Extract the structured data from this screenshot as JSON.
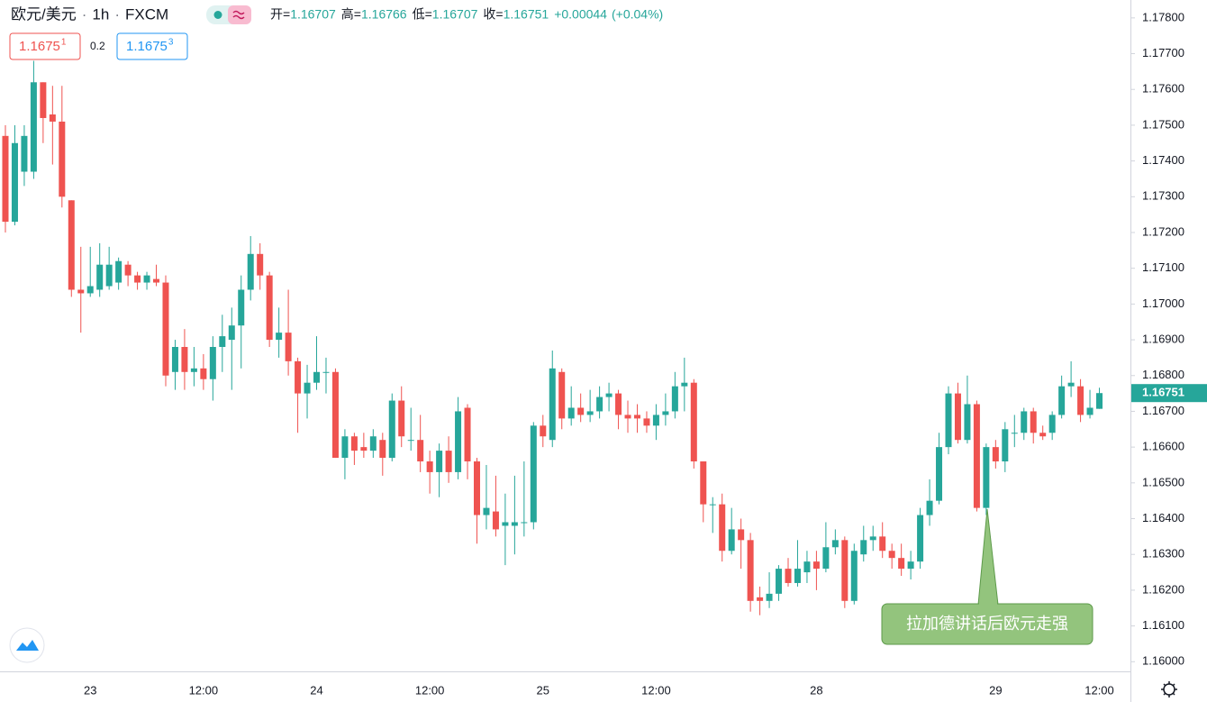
{
  "header": {
    "symbol": "欧元/美元",
    "sep": "·",
    "interval": "1h",
    "source": "FXCM",
    "ohlc": [
      {
        "label": "开=",
        "value": "1.16707"
      },
      {
        "label": "高=",
        "value": "1.16766"
      },
      {
        "label": "低=",
        "value": "1.16707"
      },
      {
        "label": "收=",
        "value": "1.16751"
      }
    ],
    "change": "+0.00044",
    "change_pct": "(+0.04%)",
    "bid": {
      "main": "1.1675",
      "sup": "1"
    },
    "spread": "0.2",
    "ask": {
      "main": "1.1675",
      "sup": "3"
    }
  },
  "chart_data": {
    "type": "candlestick",
    "up_color": "#26a69a",
    "down_color": "#ef5350",
    "categories": [
      null,
      null,
      null,
      null,
      null,
      null,
      null,
      null,
      null,
      "23",
      null,
      null,
      null,
      null,
      null,
      null,
      null,
      null,
      null,
      null,
      null,
      "12:00",
      null,
      null,
      null,
      null,
      null,
      null,
      null,
      null,
      null,
      null,
      null,
      "24",
      null,
      null,
      null,
      null,
      null,
      null,
      null,
      null,
      null,
      null,
      null,
      "12:00",
      null,
      null,
      null,
      null,
      null,
      null,
      null,
      null,
      null,
      null,
      null,
      "25",
      null,
      null,
      null,
      null,
      null,
      null,
      null,
      null,
      null,
      null,
      null,
      "12:00",
      null,
      null,
      null,
      null,
      null,
      null,
      null,
      null,
      null,
      null,
      null,
      null,
      null,
      null,
      null,
      null,
      "28",
      null,
      null,
      null,
      null,
      null,
      null,
      null,
      null,
      null,
      null,
      null,
      null,
      null,
      null,
      null,
      null,
      null,
      null,
      "29",
      null,
      null,
      null,
      null,
      null,
      null,
      null,
      null,
      null,
      null,
      "12:00"
    ],
    "open": [
      1.1747,
      1.1723,
      1.1737,
      1.1737,
      1.1762,
      1.1753,
      1.1751,
      1.1729,
      1.1704,
      1.1703,
      1.1704,
      1.1705,
      1.1706,
      1.1711,
      1.1708,
      1.1706,
      1.1707,
      1.1706,
      1.1681,
      1.1688,
      1.1681,
      1.1682,
      1.1679,
      1.1688,
      1.169,
      1.1694,
      1.1704,
      1.1714,
      1.1708,
      1.169,
      1.1692,
      1.1684,
      1.1675,
      1.1678,
      1.1681,
      1.1681,
      1.1657,
      1.1663,
      1.166,
      1.1659,
      1.1662,
      1.1657,
      1.1673,
      1.1662,
      1.1662,
      1.1656,
      1.1653,
      1.1659,
      1.1653,
      1.1671,
      1.1656,
      1.1641,
      1.1642,
      1.1638,
      1.1638,
      1.1639,
      1.1639,
      1.1666,
      1.1662,
      1.1681,
      1.1668,
      1.1671,
      1.1669,
      1.167,
      1.1674,
      1.1675,
      1.1669,
      1.1669,
      1.1668,
      1.1666,
      1.1669,
      1.167,
      1.1677,
      1.1678,
      1.1656,
      1.1644,
      1.1644,
      1.1631,
      1.1637,
      1.1634,
      1.1618,
      1.1617,
      1.1619,
      1.1626,
      1.1622,
      1.1625,
      1.1628,
      1.1626,
      1.1632,
      1.1634,
      1.1617,
      1.163,
      1.1634,
      1.1635,
      1.1631,
      1.1629,
      1.1626,
      1.1628,
      1.1641,
      1.1645,
      1.166,
      1.1675,
      1.1662,
      1.1672,
      1.1643,
      1.166,
      1.1656,
      1.1664,
      1.1664,
      1.167,
      1.1664,
      1.1664,
      1.1669,
      1.1677,
      1.1677,
      1.1669,
      1.16707
    ],
    "high": [
      1.175,
      1.175,
      1.175,
      1.1768,
      1.1762,
      1.1761,
      1.1761,
      1.1729,
      1.1716,
      1.1716,
      1.1717,
      1.1716,
      1.1713,
      1.1712,
      1.1709,
      1.1709,
      1.1711,
      1.1708,
      1.169,
      1.1693,
      1.1688,
      1.1686,
      1.1691,
      1.1697,
      1.1699,
      1.1708,
      1.1719,
      1.1717,
      1.1709,
      1.1699,
      1.1704,
      1.1685,
      1.1683,
      1.1691,
      1.1685,
      1.1682,
      1.1665,
      1.1664,
      1.1664,
      1.1665,
      1.1664,
      1.1675,
      1.1677,
      1.1671,
      1.1669,
      1.1659,
      1.1661,
      1.1663,
      1.1674,
      1.1672,
      1.1657,
      1.1655,
      1.1652,
      1.1647,
      1.1652,
      1.1656,
      1.1667,
      1.1669,
      1.1687,
      1.1682,
      1.1677,
      1.1675,
      1.1676,
      1.1677,
      1.1678,
      1.1676,
      1.1673,
      1.1672,
      1.167,
      1.1672,
      1.1675,
      1.1681,
      1.1685,
      1.1679,
      1.1656,
      1.1646,
      1.1647,
      1.1643,
      1.164,
      1.1636,
      1.1621,
      1.1625,
      1.1627,
      1.1629,
      1.1634,
      1.1631,
      1.1631,
      1.1639,
      1.1637,
      1.1635,
      1.1633,
      1.1638,
      1.1638,
      1.1639,
      1.1633,
      1.1633,
      1.1631,
      1.1643,
      1.1651,
      1.1664,
      1.1677,
      1.1678,
      1.168,
      1.1673,
      1.1661,
      1.1662,
      1.1667,
      1.1669,
      1.1671,
      1.1671,
      1.1666,
      1.167,
      1.168,
      1.1684,
      1.1679,
      1.1676,
      1.16766
    ],
    "low": [
      1.172,
      1.1722,
      1.1733,
      1.1735,
      1.1745,
      1.1739,
      1.1727,
      1.1702,
      1.1692,
      1.1702,
      1.1702,
      1.1704,
      1.1704,
      1.1705,
      1.1704,
      1.1704,
      1.1705,
      1.1677,
      1.1676,
      1.1676,
      1.1677,
      1.1676,
      1.1673,
      1.1681,
      1.1676,
      1.1682,
      1.1701,
      1.1704,
      1.1688,
      1.1685,
      1.168,
      1.1664,
      1.1668,
      1.1676,
      1.1675,
      1.1657,
      1.1651,
      1.1655,
      1.1657,
      1.1657,
      1.1652,
      1.1656,
      1.166,
      1.1659,
      1.1653,
      1.1647,
      1.1646,
      1.165,
      1.1651,
      1.1651,
      1.1633,
      1.1637,
      1.1635,
      1.1627,
      1.163,
      1.1635,
      1.1637,
      1.166,
      1.166,
      1.1665,
      1.1666,
      1.1667,
      1.1667,
      1.1668,
      1.167,
      1.1665,
      1.1664,
      1.1664,
      1.1664,
      1.1662,
      1.1666,
      1.1668,
      1.167,
      1.1654,
      1.1639,
      1.1636,
      1.1628,
      1.163,
      1.1626,
      1.1614,
      1.1613,
      1.1615,
      1.1617,
      1.1621,
      1.1621,
      1.1622,
      1.162,
      1.1625,
      1.163,
      1.1615,
      1.1616,
      1.1628,
      1.1631,
      1.1629,
      1.1626,
      1.1624,
      1.1623,
      1.1626,
      1.1638,
      1.1644,
      1.1658,
      1.1661,
      1.1661,
      1.1642,
      1.1641,
      1.1654,
      1.1653,
      1.166,
      1.1662,
      1.1661,
      1.1662,
      1.1662,
      1.1668,
      1.1674,
      1.1667,
      1.1668,
      1.16707
    ],
    "close": [
      1.1723,
      1.1745,
      1.1747,
      1.1762,
      1.1752,
      1.1751,
      1.173,
      1.1704,
      1.1703,
      1.1705,
      1.1711,
      1.1711,
      1.1712,
      1.1708,
      1.1706,
      1.1708,
      1.1706,
      1.168,
      1.1688,
      1.1681,
      1.1682,
      1.1679,
      1.1688,
      1.1691,
      1.1694,
      1.1704,
      1.1714,
      1.1708,
      1.169,
      1.1692,
      1.1684,
      1.1675,
      1.1678,
      1.1681,
      1.1681,
      1.1657,
      1.1663,
      1.1659,
      1.1659,
      1.1663,
      1.1657,
      1.1673,
      1.1663,
      1.1662,
      1.1656,
      1.1653,
      1.1659,
      1.1653,
      1.167,
      1.1656,
      1.1641,
      1.1643,
      1.1637,
      1.1639,
      1.1639,
      1.1639,
      1.1666,
      1.1663,
      1.1682,
      1.1668,
      1.1671,
      1.1669,
      1.167,
      1.1674,
      1.1675,
      1.1669,
      1.1668,
      1.1668,
      1.1666,
      1.1669,
      1.167,
      1.1677,
      1.1678,
      1.1656,
      1.1644,
      1.1644,
      1.1631,
      1.1637,
      1.1634,
      1.1617,
      1.1617,
      1.1619,
      1.1626,
      1.1622,
      1.1626,
      1.1628,
      1.1626,
      1.1632,
      1.1634,
      1.1617,
      1.1631,
      1.1634,
      1.1635,
      1.1631,
      1.1629,
      1.1626,
      1.1628,
      1.1641,
      1.1645,
      1.166,
      1.1675,
      1.1662,
      1.1672,
      1.1643,
      1.166,
      1.1656,
      1.1665,
      1.1664,
      1.167,
      1.1664,
      1.1663,
      1.1669,
      1.1677,
      1.1678,
      1.1669,
      1.1671,
      1.16751
    ],
    "ylim": [
      1.15973,
      1.1785
    ],
    "yticks": [
      {
        "value": 1.16,
        "label": "1.16000"
      },
      {
        "value": 1.161,
        "label": "1.16100"
      },
      {
        "value": 1.162,
        "label": "1.16200"
      },
      {
        "value": 1.163,
        "label": "1.16300"
      },
      {
        "value": 1.164,
        "label": "1.16400"
      },
      {
        "value": 1.165,
        "label": "1.16500"
      },
      {
        "value": 1.166,
        "label": "1.16600"
      },
      {
        "value": 1.167,
        "label": "1.16700"
      },
      {
        "value": 1.168,
        "label": "1.16800"
      },
      {
        "value": 1.169,
        "label": "1.16900"
      },
      {
        "value": 1.17,
        "label": "1.17000"
      },
      {
        "value": 1.171,
        "label": "1.17100"
      },
      {
        "value": 1.172,
        "label": "1.17200"
      },
      {
        "value": 1.173,
        "label": "1.17300"
      },
      {
        "value": 1.174,
        "label": "1.17400"
      },
      {
        "value": 1.175,
        "label": "1.17500"
      },
      {
        "value": 1.176,
        "label": "1.17600"
      },
      {
        "value": 1.177,
        "label": "1.17700"
      },
      {
        "value": 1.178,
        "label": "1.17800"
      }
    ],
    "last_price_label": "1.16751",
    "annotation": "拉加德讲话后欧元走强",
    "grid": false
  }
}
